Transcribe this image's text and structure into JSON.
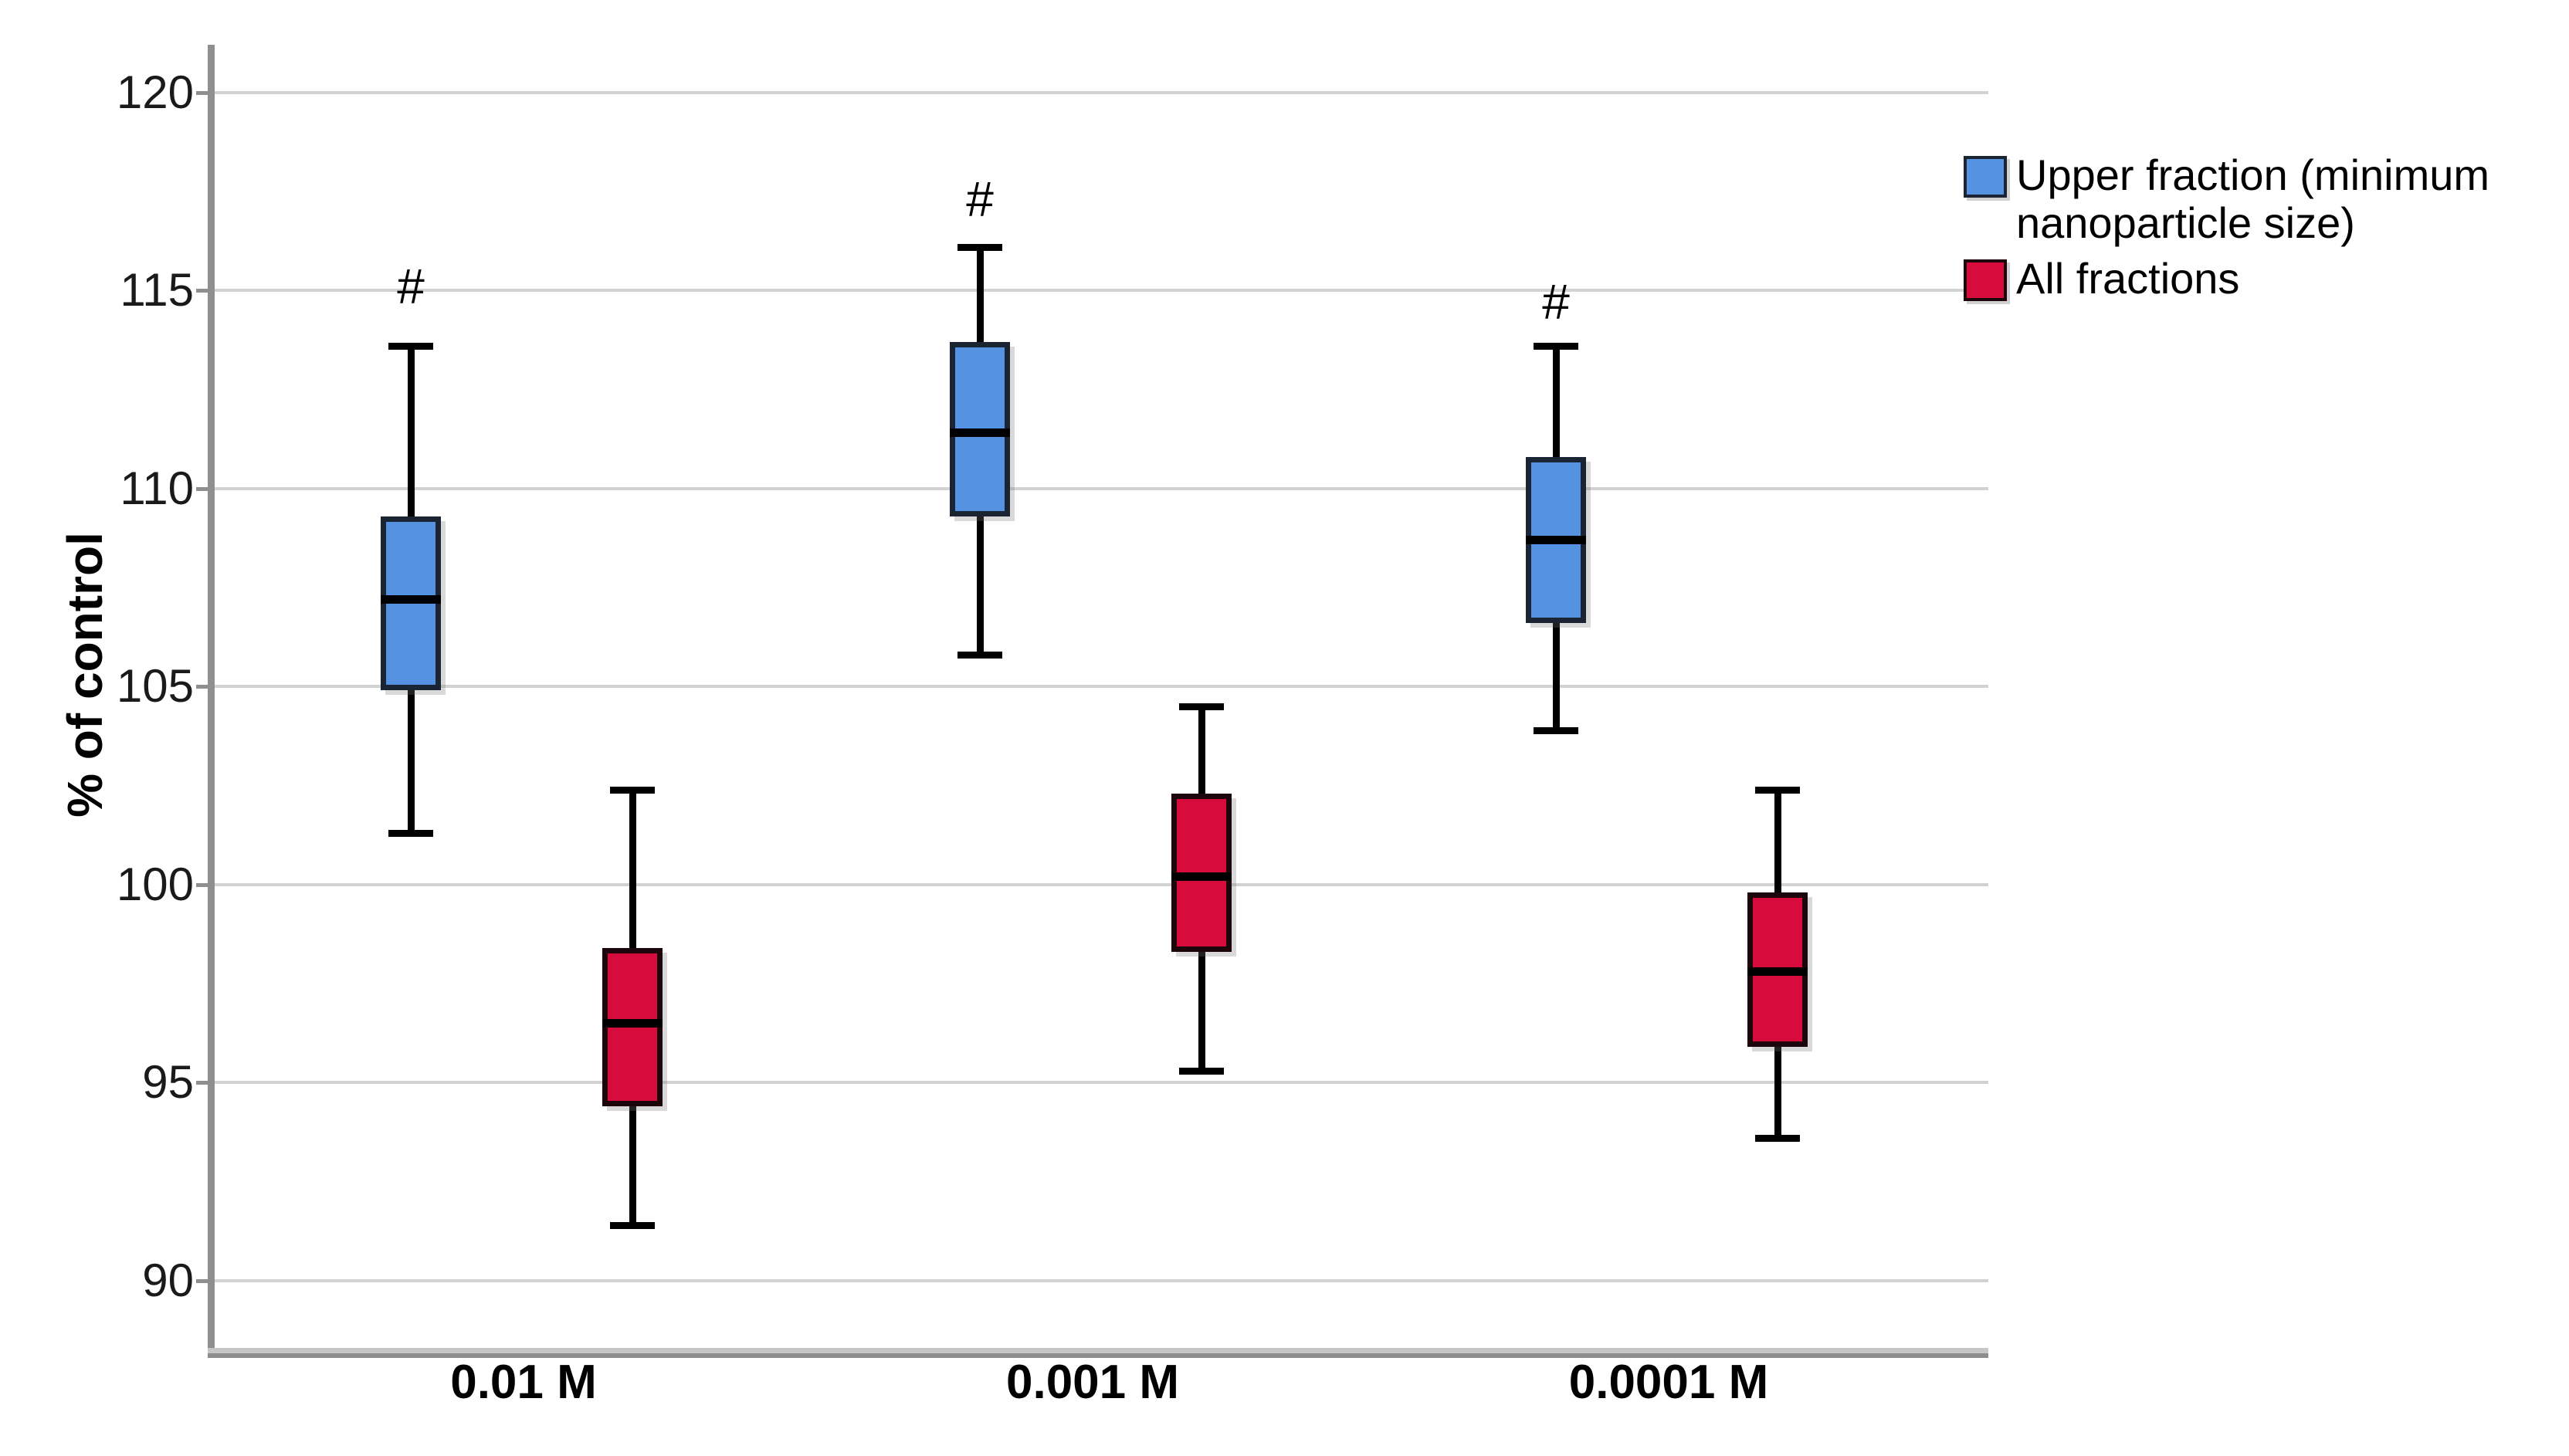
{
  "figure": {
    "y_axis_title": "% of control"
  },
  "chart_data": {
    "type": "boxplot",
    "title": "",
    "xlabel": "",
    "ylabel": "% of control",
    "ylim": [
      88.3,
      121.2
    ],
    "yticks": [
      120,
      115,
      110,
      105,
      100,
      95,
      90
    ],
    "grid": "horizontal gridlines at every y tick",
    "legend_position": "top-right",
    "categories": [
      "0.01 M",
      "0.001 M",
      "0.0001 M"
    ],
    "series": [
      {
        "name": "Upper fraction (minimum nanoparticle size)",
        "fill_color": "#5592e1",
        "border_color": "#1a2433",
        "boxes": [
          {
            "category": "0.01 M",
            "whisker_low": 101.3,
            "q1": 104.9,
            "median": 107.2,
            "q3": 109.3,
            "whisker_high": 113.6
          },
          {
            "category": "0.001 M",
            "whisker_low": 105.8,
            "q1": 109.3,
            "median": 111.4,
            "q3": 113.7,
            "whisker_high": 116.1
          },
          {
            "category": "0.0001 M",
            "whisker_low": 103.9,
            "q1": 106.6,
            "median": 108.7,
            "q3": 110.8,
            "whisker_high": 113.6
          }
        ]
      },
      {
        "name": "All fractions",
        "fill_color": "#d80c3c",
        "border_color": "#1c060c",
        "boxes": [
          {
            "category": "0.01 M",
            "whisker_low": 91.4,
            "q1": 94.4,
            "median": 96.5,
            "q3": 98.4,
            "whisker_high": 102.4
          },
          {
            "category": "0.001 M",
            "whisker_low": 95.3,
            "q1": 98.3,
            "median": 100.2,
            "q3": 102.3,
            "whisker_high": 104.5
          },
          {
            "category": "0.0001 M",
            "whisker_low": 93.6,
            "q1": 95.9,
            "median": 97.8,
            "q3": 99.8,
            "whisker_high": 102.4
          }
        ]
      }
    ],
    "annotations": [
      {
        "text": "#",
        "series": "Upper fraction (minimum nanoparticle size)",
        "category": "0.01 M",
        "y": 115.1
      },
      {
        "text": "#",
        "series": "Upper fraction (minimum nanoparticle size)",
        "category": "0.001 M",
        "y": 117.3
      },
      {
        "text": "#",
        "series": "Upper fraction (minimum nanoparticle size)",
        "category": "0.0001 M",
        "y": 114.7
      }
    ]
  }
}
